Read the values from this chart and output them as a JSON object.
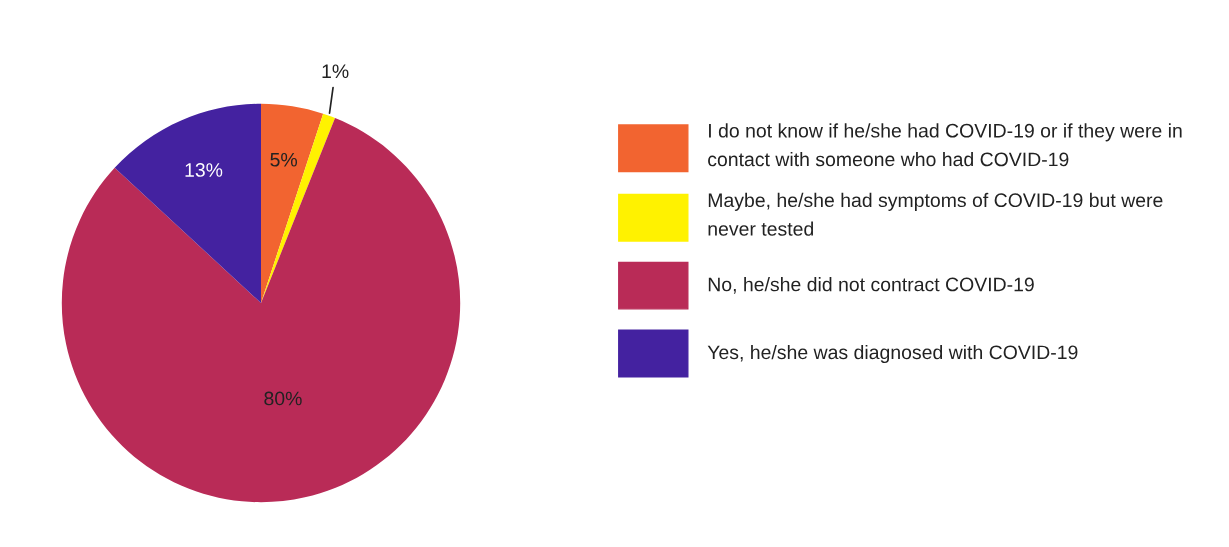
{
  "chart_data": {
    "type": "pie",
    "categories": [
      "I do not know if he/she had COVID-19 or if they were in contact with someone who had COVID-19",
      "Maybe, he/she had symptoms of COVID-19 but were never tested",
      "No, he/she did not contract COVID-19",
      "Yes, he/she was diagnosed with COVID-19"
    ],
    "values": [
      5,
      1,
      80,
      13
    ],
    "value_labels": [
      "5%",
      "1%",
      "80%",
      "13%"
    ],
    "colors": [
      "#f26430",
      "#fff200",
      "#b92b57",
      "#4422a0"
    ],
    "legend": "right"
  }
}
